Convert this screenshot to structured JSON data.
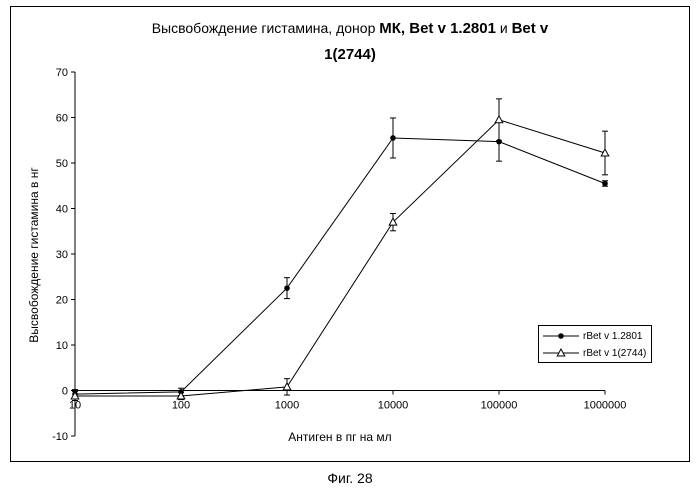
{
  "title": {
    "line1_normal": "Высвобождение гистамина, донор",
    "line1_bold_a": "МК, Bet v 1.2801",
    "line1_and": "и",
    "line1_bold_b": "Bet v",
    "line2_bold": "1(2744)"
  },
  "caption": "Фиг. 28",
  "chart_data": {
    "type": "line",
    "title": "Высвобождение гистамина, донор МК, Bet v 1.2801 и Bet v 1(2744)",
    "xlabel": "Антиген в пг на мл",
    "ylabel": "Высвобождение гистамина в нг",
    "x_scale": "log",
    "x": [
      10,
      100,
      1000,
      10000,
      100000,
      1000000
    ],
    "x_tick_labels": [
      "10",
      "100",
      "1000",
      "10000",
      "100000",
      "1000000"
    ],
    "ylim": [
      -10,
      70
    ],
    "y_ticks": [
      -10,
      0,
      10,
      20,
      30,
      40,
      50,
      60,
      70
    ],
    "grid": false,
    "legend_position": "right",
    "series": [
      {
        "name": "rBet v 1.2801",
        "marker": "filled-circle",
        "values": [
          -0.8,
          -0.3,
          22.5,
          55.5,
          54.7,
          45.5
        ],
        "errors": [
          1.0,
          0.8,
          2.3,
          4.4,
          4.3,
          0.6
        ]
      },
      {
        "name": "rBet v 1(2744)",
        "marker": "open-triangle",
        "values": [
          -1.2,
          -1.2,
          0.8,
          37.0,
          59.5,
          52.2
        ],
        "errors": [
          1.0,
          0.8,
          1.8,
          1.9,
          4.6,
          4.8
        ]
      }
    ]
  }
}
